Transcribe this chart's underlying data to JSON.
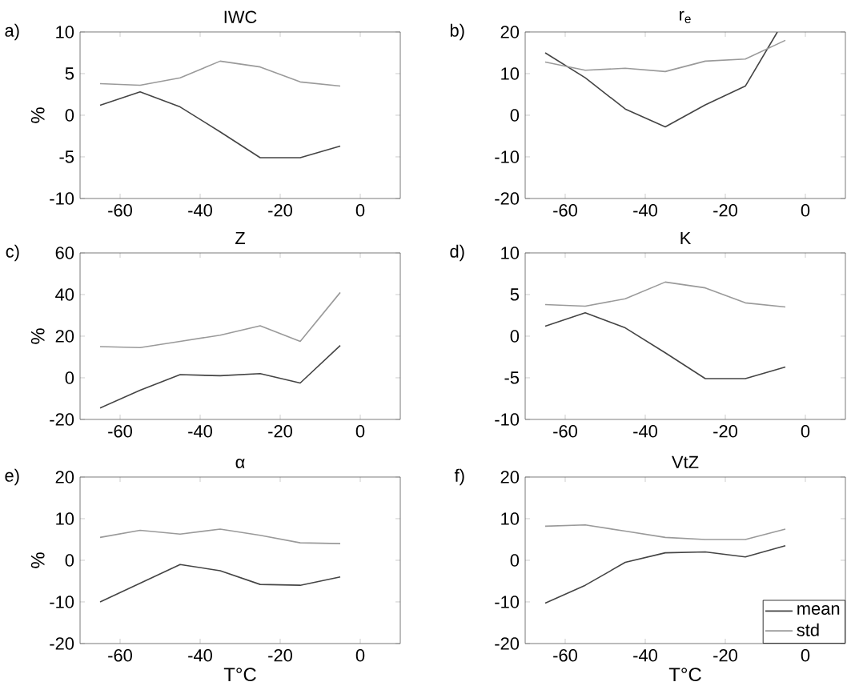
{
  "chart_data": [
    {
      "type": "line",
      "title": "IWC",
      "ylabel": "%",
      "annotations": [
        "a)"
      ],
      "x": [
        -65,
        -55,
        -45,
        -35,
        -25,
        -15,
        -5
      ],
      "xlim": [
        -70,
        10
      ],
      "xticks": [
        -60,
        -40,
        -20,
        0
      ],
      "ylim": [
        -10,
        10
      ],
      "yticks": [
        -10,
        -5,
        0,
        5,
        10
      ],
      "series": [
        {
          "color": "#444444",
          "values": [
            1.2,
            2.8,
            1.0,
            -2.0,
            -5.1,
            -5.1,
            -3.7
          ]
        },
        {
          "color": "#9a9a9a",
          "values": [
            3.8,
            3.6,
            4.5,
            6.5,
            5.8,
            4.0,
            3.5
          ]
        }
      ]
    },
    {
      "type": "line",
      "title": "r$_{e}$",
      "annotations": [
        "b)"
      ],
      "x": [
        -65,
        -55,
        -45,
        -35,
        -25,
        -15,
        -5
      ],
      "xlim": [
        -70,
        10
      ],
      "xticks": [
        -60,
        -40,
        -20,
        0
      ],
      "ylim": [
        -20,
        20
      ],
      "yticks": [
        -20,
        -10,
        0,
        10,
        20
      ],
      "series": [
        {
          "color": "#444444",
          "x": [
            -65,
            -55,
            -45,
            -35,
            -25,
            -15,
            -7
          ],
          "values": [
            15,
            9,
            1.5,
            -2.8,
            2.5,
            7,
            20
          ]
        },
        {
          "color": "#9a9a9a",
          "values": [
            12.8,
            10.8,
            11.3,
            10.5,
            13,
            13.5,
            18
          ]
        }
      ]
    },
    {
      "type": "line",
      "title": "Z",
      "ylabel": "%",
      "annotations": [
        "c)"
      ],
      "x": [
        -65,
        -55,
        -45,
        -35,
        -25,
        -15,
        -5
      ],
      "xlim": [
        -70,
        10
      ],
      "xticks": [
        -60,
        -40,
        -20,
        0
      ],
      "ylim": [
        -20,
        60
      ],
      "yticks": [
        -20,
        0,
        20,
        40,
        60
      ],
      "series": [
        {
          "color": "#444444",
          "values": [
            -14.5,
            -6,
            1.5,
            1,
            2,
            -2.5,
            15.5
          ]
        },
        {
          "color": "#9a9a9a",
          "values": [
            15,
            14.5,
            17.5,
            20.5,
            25,
            17.5,
            41
          ]
        }
      ]
    },
    {
      "type": "line",
      "title": "K",
      "annotations": [
        "d)"
      ],
      "x": [
        -65,
        -55,
        -45,
        -35,
        -25,
        -15,
        -5
      ],
      "xlim": [
        -70,
        10
      ],
      "xticks": [
        -60,
        -40,
        -20,
        0
      ],
      "ylim": [
        -10,
        10
      ],
      "yticks": [
        -10,
        -5,
        0,
        5,
        10
      ],
      "series": [
        {
          "color": "#444444",
          "values": [
            1.2,
            2.8,
            1.0,
            -2.0,
            -5.1,
            -5.1,
            -3.7
          ]
        },
        {
          "color": "#9a9a9a",
          "values": [
            3.8,
            3.6,
            4.5,
            6.5,
            5.8,
            4.0,
            3.5
          ]
        }
      ]
    },
    {
      "type": "line",
      "title": "α",
      "ylabel": "%",
      "xlabel": "T°C",
      "annotations": [
        "e)"
      ],
      "x": [
        -65,
        -55,
        -45,
        -35,
        -25,
        -15,
        -5
      ],
      "xlim": [
        -70,
        10
      ],
      "xticks": [
        -60,
        -40,
        -20,
        0
      ],
      "ylim": [
        -20,
        20
      ],
      "yticks": [
        -20,
        -10,
        0,
        10,
        20
      ],
      "series": [
        {
          "color": "#444444",
          "values": [
            -10,
            -5.5,
            -1,
            -2.5,
            -5.8,
            -6,
            -4
          ]
        },
        {
          "color": "#9a9a9a",
          "values": [
            5.5,
            7.2,
            6.3,
            7.5,
            6,
            4.2,
            4
          ]
        }
      ]
    },
    {
      "type": "line",
      "title": "VtZ",
      "xlabel": "T°C",
      "annotations": [
        "f)"
      ],
      "legend": "bottom right",
      "x": [
        -65,
        -55,
        -45,
        -35,
        -25,
        -15,
        -5
      ],
      "xlim": [
        -70,
        10
      ],
      "xticks": [
        -60,
        -40,
        -20,
        0
      ],
      "ylim": [
        -20,
        20
      ],
      "yticks": [
        -20,
        -10,
        0,
        10,
        20
      ],
      "series": [
        {
          "name": "mean",
          "color": "#444444",
          "values": [
            -10.3,
            -6,
            -0.5,
            1.8,
            2,
            0.8,
            3.5
          ]
        },
        {
          "name": "std",
          "color": "#9a9a9a",
          "values": [
            8.2,
            8.5,
            7,
            5.5,
            5,
            5,
            7.5
          ]
        }
      ]
    }
  ]
}
